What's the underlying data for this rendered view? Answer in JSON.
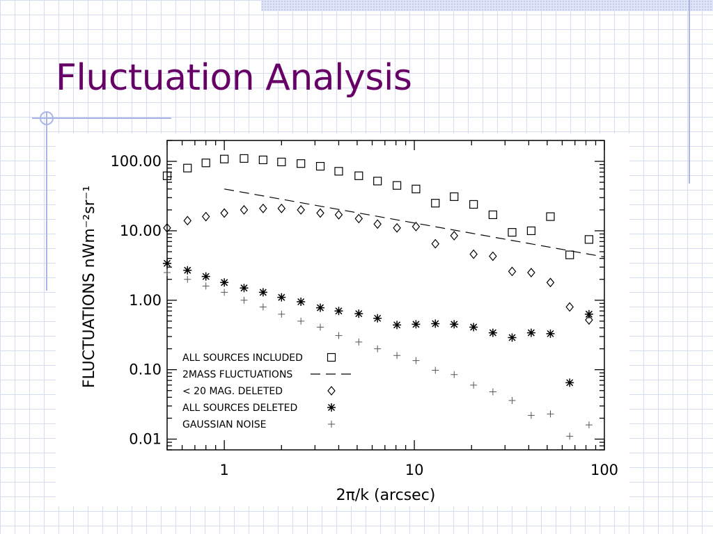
{
  "slide": {
    "title": "Fluctuation Analysis"
  },
  "chart_data": {
    "type": "scatter",
    "xlabel": "2π/k    (arcsec)",
    "ylabel": "FLUCTUATIONS   nWm⁻²sr⁻¹",
    "x_scale": "log",
    "y_scale": "log",
    "xlim": [
      0.5,
      100
    ],
    "ylim": [
      0.007,
      200
    ],
    "x_ticks": [
      {
        "value": 1,
        "label": "1"
      },
      {
        "value": 10,
        "label": "10"
      },
      {
        "value": 100,
        "label": "100"
      }
    ],
    "y_ticks": [
      {
        "value": 100,
        "label": "100.00"
      },
      {
        "value": 10,
        "label": "10.00"
      },
      {
        "value": 1,
        "label": "1.00"
      },
      {
        "value": 0.1,
        "label": "0.10"
      },
      {
        "value": 0.01,
        "label": "0.01"
      }
    ],
    "legend_position": "bottom-left",
    "series": [
      {
        "name": "ALL SOURCES INCLUDED",
        "marker": "square",
        "x": [
          0.5,
          0.64,
          0.8,
          1.0,
          1.27,
          1.6,
          2.0,
          2.53,
          3.2,
          4.0,
          5.1,
          6.4,
          8.1,
          10.2,
          12.9,
          16.2,
          20.5,
          25.9,
          32.7,
          41.2,
          52.0,
          65.7,
          83.0
        ],
        "y": [
          62,
          80,
          95,
          108,
          110,
          105,
          98,
          93,
          85,
          72,
          62,
          52,
          45,
          40,
          25,
          31,
          24,
          17,
          9.5,
          10,
          16,
          4.5,
          7.5
        ]
      },
      {
        "name": "2MASS FLUCTUATIONS",
        "marker": "dashed-line",
        "x": [
          1.0,
          100.0
        ],
        "y": [
          40,
          4.2
        ]
      },
      {
        "name": "< 20 MAG. DELETED",
        "marker": "diamond",
        "x": [
          0.5,
          0.64,
          0.8,
          1.0,
          1.27,
          1.6,
          2.0,
          2.53,
          3.2,
          4.0,
          5.1,
          6.4,
          8.1,
          10.2,
          12.9,
          16.2,
          20.5,
          25.9,
          32.7,
          41.2,
          52.0,
          65.7,
          83.0
        ],
        "y": [
          11,
          14,
          16,
          18,
          20,
          21,
          21,
          20,
          18,
          17,
          15,
          12.5,
          11,
          11.5,
          6.5,
          8.5,
          4.6,
          4.3,
          2.6,
          2.5,
          1.8,
          0.8,
          0.52
        ]
      },
      {
        "name": "ALL SOURCES DELETED",
        "marker": "asterisk",
        "x": [
          0.5,
          0.64,
          0.8,
          1.0,
          1.27,
          1.6,
          2.0,
          2.53,
          3.2,
          4.0,
          5.1,
          6.4,
          8.1,
          10.2,
          12.9,
          16.2,
          20.5,
          25.9,
          32.7,
          41.2,
          52.0,
          65.7,
          83.0
        ],
        "y": [
          3.4,
          2.7,
          2.2,
          1.8,
          1.5,
          1.3,
          1.1,
          0.95,
          0.78,
          0.7,
          0.64,
          0.55,
          0.44,
          0.45,
          0.46,
          0.45,
          0.41,
          0.34,
          0.29,
          0.34,
          0.33,
          0.065,
          0.63
        ]
      },
      {
        "name": "GAUSSIAN NOISE",
        "marker": "plus",
        "x": [
          0.5,
          0.64,
          0.8,
          1.0,
          1.27,
          1.6,
          2.0,
          2.53,
          3.2,
          4.0,
          5.1,
          6.4,
          8.1,
          10.2,
          12.9,
          16.2,
          20.5,
          25.9,
          32.7,
          41.2,
          52.0,
          65.7,
          83.0
        ],
        "y": [
          2.5,
          2.0,
          1.6,
          1.3,
          1.0,
          0.8,
          0.63,
          0.5,
          0.41,
          0.31,
          0.25,
          0.2,
          0.16,
          0.135,
          0.098,
          0.085,
          0.06,
          0.048,
          0.036,
          0.022,
          0.023,
          0.011,
          0.016
        ]
      }
    ]
  }
}
